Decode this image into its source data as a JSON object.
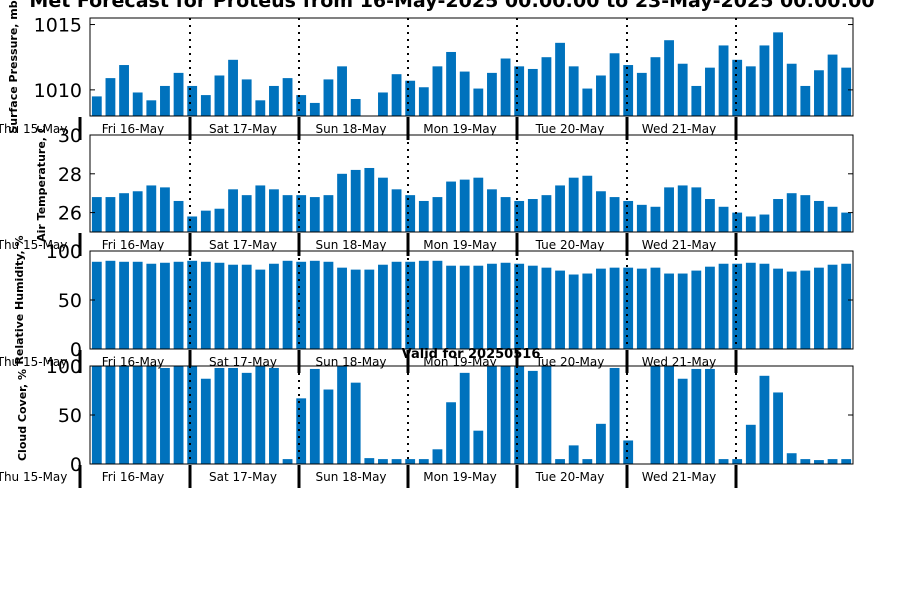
{
  "title": "Met Forecast for Proteus from 16-May-2025 00:00:00 to 23-May-2025 00:00:00",
  "valid_label": "Valid for 20250516",
  "colors": {
    "bar": "#0072BD",
    "axis": "#000000"
  },
  "day_labels": [
    "Thu 15-May",
    "Fri 16-May",
    "Sat 17-May",
    "Sun 18-May",
    "Mon 19-May",
    "Tue 20-May",
    "Wed 21-May"
  ],
  "chart_data": [
    {
      "type": "bar",
      "ylabel": "Surface Pressure, mb",
      "ylim": [
        1008,
        1015.5
      ],
      "yticks": [
        1010,
        1015
      ],
      "values": [
        1009.5,
        1010.9,
        1011.9,
        1009.8,
        1009.2,
        1010.3,
        1011.3,
        1010.3,
        1009.6,
        1011.1,
        1012.3,
        1010.8,
        1009.2,
        1010.3,
        1010.9,
        1009.6,
        1009.0,
        1010.8,
        1011.8,
        1009.3,
        1008.0,
        1009.8,
        1011.2,
        1010.7,
        1010.2,
        1011.8,
        1012.9,
        1011.4,
        1010.1,
        1011.3,
        1012.4,
        1011.8,
        1011.6,
        1012.5,
        1013.6,
        1011.8,
        1010.1,
        1011.1,
        1012.8,
        1011.9,
        1011.3,
        1012.5,
        1013.8,
        1012.0,
        1010.3,
        1011.7,
        1013.4,
        1012.3,
        1011.8,
        1013.4,
        1014.4,
        1012.0,
        1010.3,
        1011.5,
        1012.7,
        1011.7
      ]
    },
    {
      "type": "bar",
      "ylabel": "Air Temperature, C",
      "ylim": [
        25,
        30
      ],
      "yticks": [
        26,
        28,
        30
      ],
      "values": [
        26.8,
        26.8,
        27.0,
        27.1,
        27.4,
        27.3,
        26.6,
        25.8,
        26.1,
        26.2,
        27.2,
        26.9,
        27.4,
        27.2,
        26.9,
        26.9,
        26.8,
        26.9,
        28.0,
        28.2,
        28.3,
        27.8,
        27.2,
        26.9,
        26.6,
        26.8,
        27.6,
        27.7,
        27.8,
        27.2,
        26.8,
        26.6,
        26.7,
        26.9,
        27.4,
        27.8,
        27.9,
        27.1,
        26.8,
        26.6,
        26.4,
        26.3,
        27.3,
        27.4,
        27.3,
        26.7,
        26.3,
        26.0,
        25.8,
        25.9,
        26.7,
        27.0,
        26.9,
        26.6,
        26.3,
        26.0
      ]
    },
    {
      "type": "bar",
      "ylabel": "Relative Humidity, %",
      "ylim": [
        0,
        100
      ],
      "yticks": [
        0,
        50,
        100
      ],
      "values": [
        89,
        90,
        89,
        89,
        87,
        88,
        89,
        90,
        89,
        88,
        86,
        86,
        81,
        87,
        90,
        89,
        90,
        89,
        83,
        81,
        81,
        86,
        89,
        89,
        90,
        90,
        85,
        85,
        85,
        87,
        88,
        87,
        85,
        83,
        80,
        76,
        77,
        82,
        83,
        83,
        82,
        83,
        77,
        77,
        80,
        84,
        87,
        87,
        88,
        87,
        82,
        79,
        80,
        83,
        86,
        87
      ]
    },
    {
      "type": "bar",
      "ylabel": "Cloud Cover, %",
      "ylim": [
        0,
        100
      ],
      "yticks": [
        0,
        50,
        100
      ],
      "values": [
        100,
        100,
        100,
        100,
        100,
        98,
        100,
        100,
        87,
        98,
        98,
        93,
        100,
        98,
        5,
        67,
        97,
        76,
        100,
        83,
        6,
        5,
        5,
        5,
        5,
        15,
        63,
        93,
        34,
        100,
        100,
        100,
        95,
        100,
        5,
        19,
        5,
        41,
        98,
        24,
        0,
        100,
        100,
        87,
        97,
        97,
        5,
        5,
        40,
        90,
        73,
        11,
        5,
        4,
        5,
        5
      ]
    }
  ]
}
